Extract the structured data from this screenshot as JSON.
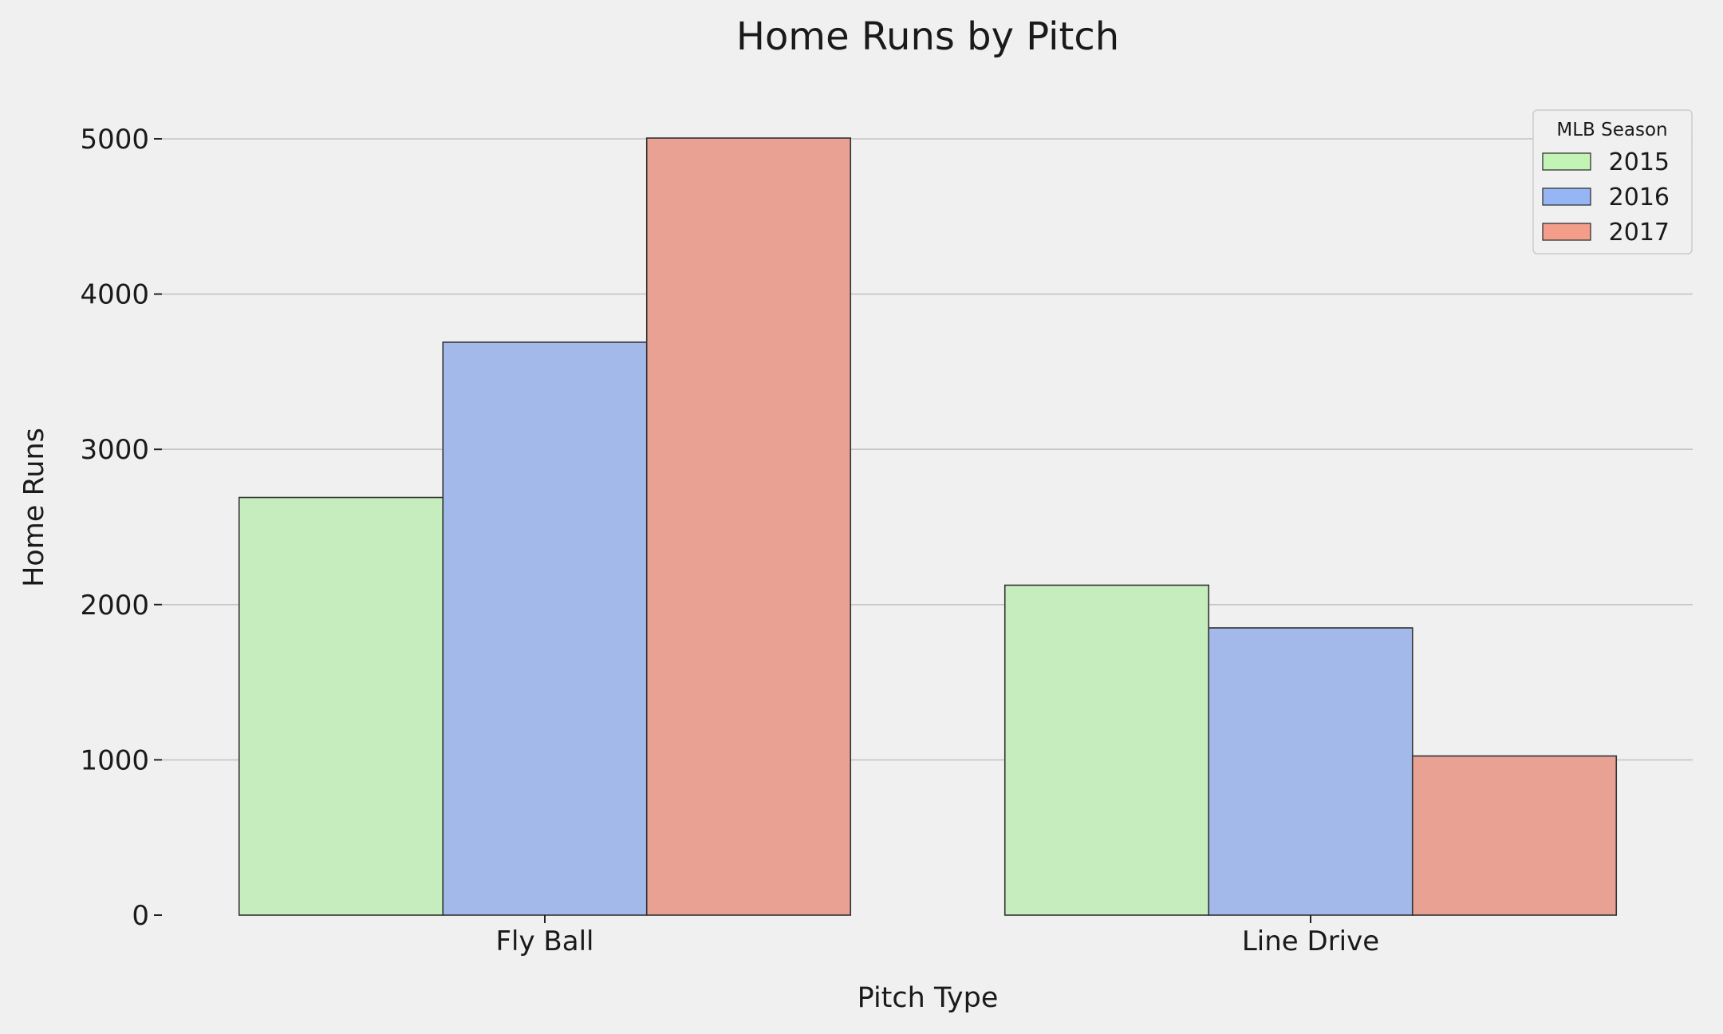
{
  "chart_data": {
    "type": "bar",
    "title": "Home Runs by Pitch",
    "xlabel": "Pitch Type",
    "ylabel": "Home Runs",
    "categories": [
      "Fly Ball",
      "Line Drive"
    ],
    "ylim": [
      0,
      5300
    ],
    "yticks": [
      0,
      1000,
      2000,
      3000,
      4000,
      5000
    ],
    "ytick_labels": [
      "0",
      "1000",
      "2000",
      "3000",
      "4000",
      "5000"
    ],
    "grid": true,
    "legend": {
      "title": "MLB Season",
      "position": "top-right"
    },
    "series": [
      {
        "name": "2015",
        "color": "#c6edbd",
        "legend_color": "#c2f5b5",
        "values": [
          2690,
          2125
        ]
      },
      {
        "name": "2016",
        "color": "#a2b9e9",
        "legend_color": "#95b5f4",
        "values": [
          3690,
          1850
        ]
      },
      {
        "name": "2017",
        "color": "#e9a194",
        "legend_color": "#f39d8b",
        "values": [
          5005,
          1025
        ]
      }
    ]
  }
}
